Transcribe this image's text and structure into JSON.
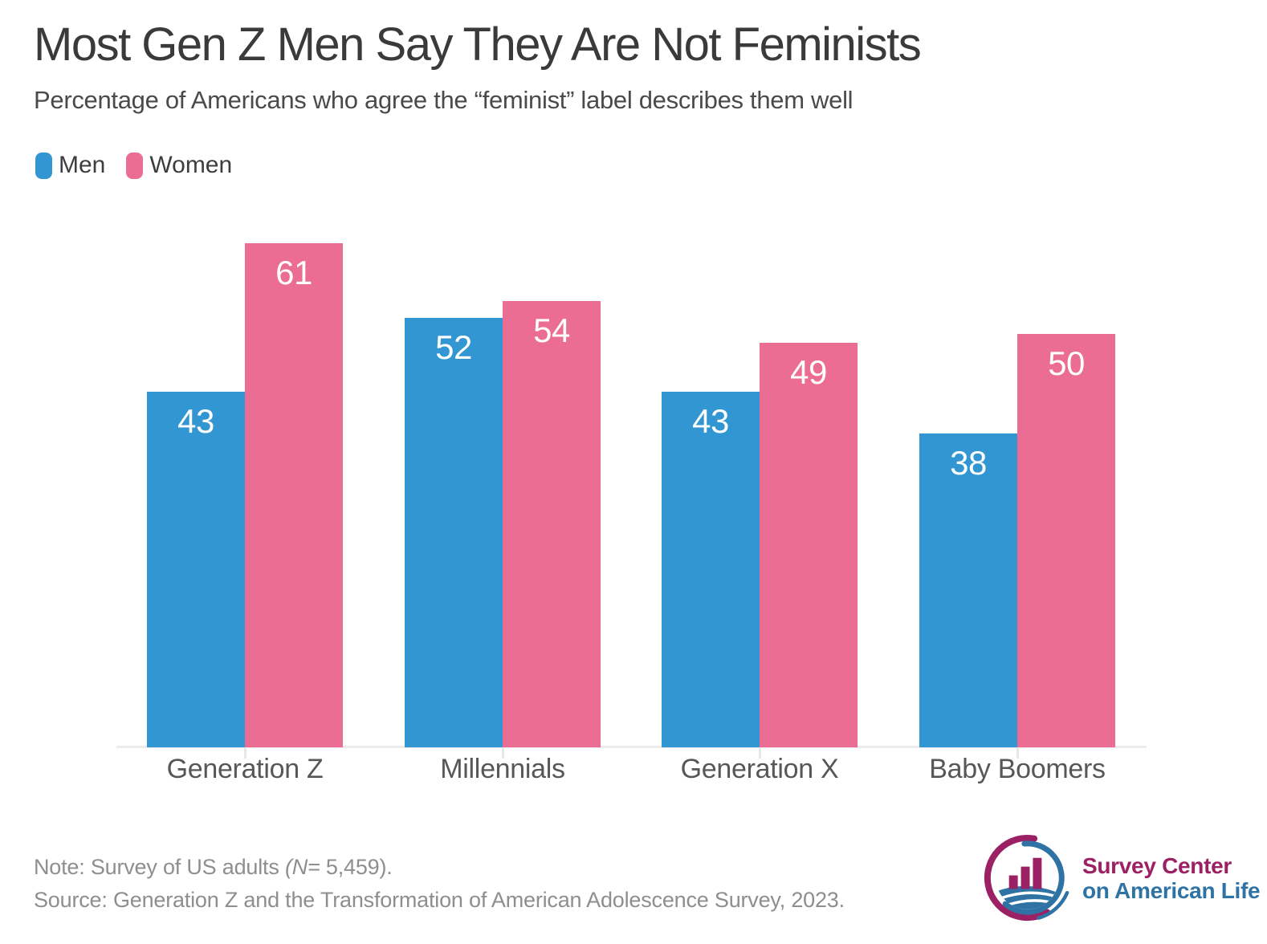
{
  "chart_data": {
    "type": "bar",
    "title": "Most Gen Z Men Say They Are Not Feminists",
    "subtitle": "Percentage of Americans who agree the “feminist” label describes them well",
    "categories": [
      "Generation Z",
      "Millennials",
      "Generation X",
      "Baby Boomers"
    ],
    "series": [
      {
        "name": "Men",
        "color": "#3296d3",
        "values": [
          43,
          52,
          43,
          38
        ]
      },
      {
        "name": "Women",
        "color": "#eb6d93",
        "values": [
          61,
          54,
          49,
          50
        ]
      }
    ],
    "value_labels": "inside-top",
    "ylim": [
      0,
      61
    ],
    "grid": false,
    "legend_position": "top-left"
  },
  "footer": {
    "note": {
      "pre": "Note: Survey of US adults ",
      "mid_italic": "(N=",
      "post": " 5,459)."
    },
    "source": "Source: Generation Z and the Transformation of American Adolescence Survey, 2023."
  },
  "logo": {
    "line1": "Survey Center",
    "line2": "on American Life",
    "colors": {
      "maroon": "#9c2064",
      "blue": "#2e73a3"
    }
  },
  "colors": {
    "title": "#3a3a3a",
    "subtitle": "#4a4a4a",
    "category": "#575757",
    "note": "#8e8e8e",
    "axis": "#ececec"
  }
}
